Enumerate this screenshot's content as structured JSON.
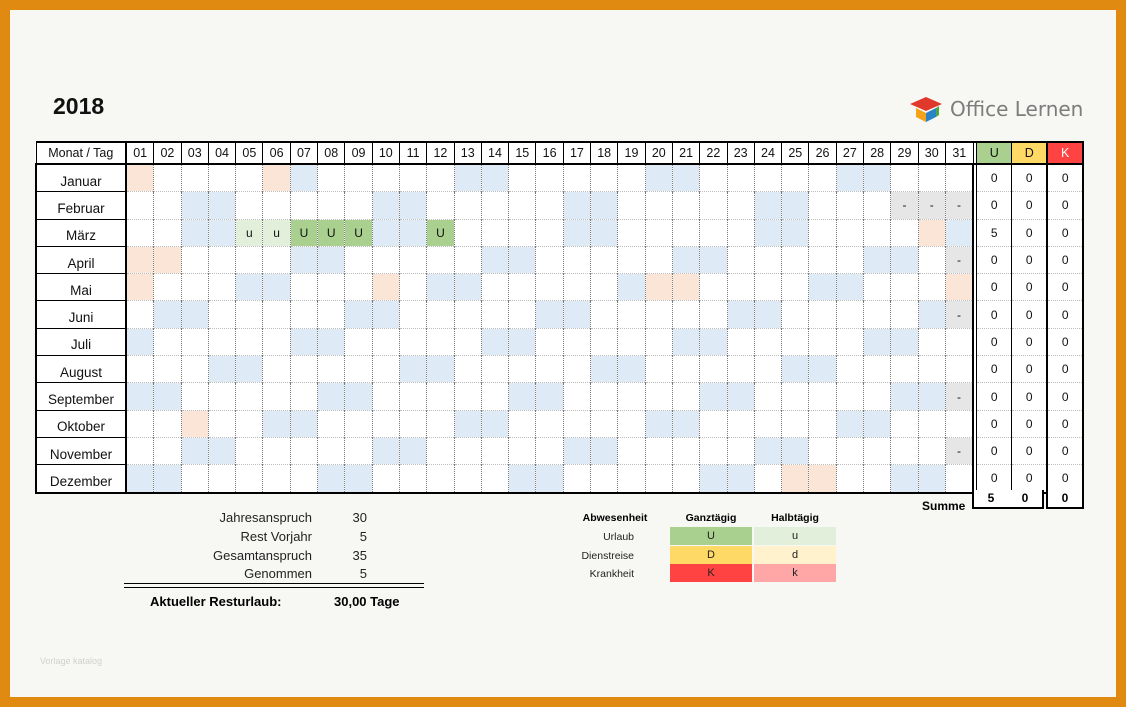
{
  "title": "2018",
  "brand": {
    "name": "Office Lernen",
    "colors": [
      "#e0392b",
      "#f3a21a",
      "#2a83c6",
      "#49a843"
    ]
  },
  "calendar": {
    "corner": "Monat / Tag",
    "days": [
      "01",
      "02",
      "03",
      "04",
      "05",
      "06",
      "07",
      "08",
      "09",
      "10",
      "11",
      "12",
      "13",
      "14",
      "15",
      "16",
      "17",
      "18",
      "19",
      "20",
      "21",
      "22",
      "23",
      "24",
      "25",
      "26",
      "27",
      "28",
      "29",
      "30",
      "31"
    ],
    "count_headers": [
      "U",
      "D",
      "K"
    ],
    "months": [
      {
        "name": "Januar",
        "counts": [
          "0",
          "0",
          "0"
        ]
      },
      {
        "name": "Februar",
        "counts": [
          "0",
          "0",
          "0"
        ]
      },
      {
        "name": "März",
        "counts": [
          "5",
          "0",
          "0"
        ]
      },
      {
        "name": "April",
        "counts": [
          "0",
          "0",
          "0"
        ]
      },
      {
        "name": "Mai",
        "counts": [
          "0",
          "0",
          "0"
        ]
      },
      {
        "name": "Juni",
        "counts": [
          "0",
          "0",
          "0"
        ]
      },
      {
        "name": "Juli",
        "counts": [
          "0",
          "0",
          "0"
        ]
      },
      {
        "name": "August",
        "counts": [
          "0",
          "0",
          "0"
        ]
      },
      {
        "name": "September",
        "counts": [
          "0",
          "0",
          "0"
        ]
      },
      {
        "name": "Oktober",
        "counts": [
          "0",
          "0",
          "0"
        ]
      },
      {
        "name": "November",
        "counts": [
          "0",
          "0",
          "0"
        ]
      },
      {
        "name": "Dezember",
        "counts": [
          "0",
          "0",
          "0"
        ]
      }
    ],
    "entries": [
      {
        "month": 3,
        "day": 5,
        "mark": "u"
      },
      {
        "month": 3,
        "day": 6,
        "mark": "u"
      },
      {
        "month": 3,
        "day": 7,
        "mark": "U"
      },
      {
        "month": 3,
        "day": 8,
        "mark": "U"
      },
      {
        "month": 3,
        "day": 9,
        "mark": "U"
      },
      {
        "month": 3,
        "day": 12,
        "mark": "U"
      },
      {
        "month": 2,
        "day": 29,
        "mark": "-"
      },
      {
        "month": 2,
        "day": 30,
        "mark": "-"
      },
      {
        "month": 2,
        "day": 31,
        "mark": "-"
      },
      {
        "month": 4,
        "day": 31,
        "mark": "-"
      },
      {
        "month": 6,
        "day": 31,
        "mark": "-"
      },
      {
        "month": 9,
        "day": 31,
        "mark": "-"
      },
      {
        "month": 11,
        "day": 31,
        "mark": "-"
      }
    ],
    "holidays": [
      {
        "month": 1,
        "day": 1
      },
      {
        "month": 1,
        "day": 6
      },
      {
        "month": 3,
        "day": 30
      },
      {
        "month": 4,
        "day": 1
      },
      {
        "month": 4,
        "day": 2
      },
      {
        "month": 5,
        "day": 1
      },
      {
        "month": 5,
        "day": 10
      },
      {
        "month": 5,
        "day": 20
      },
      {
        "month": 5,
        "day": 21
      },
      {
        "month": 5,
        "day": 31
      },
      {
        "month": 10,
        "day": 3
      },
      {
        "month": 12,
        "day": 25
      },
      {
        "month": 12,
        "day": 26
      }
    ],
    "weekend_first_saturday": [
      6,
      3,
      3,
      7,
      5,
      2,
      7,
      4,
      1,
      6,
      3,
      1
    ],
    "summe_label": "Summe",
    "summe": [
      "5",
      "0",
      "0"
    ]
  },
  "stats": {
    "rows": [
      {
        "label": "Jahresanspruch",
        "value": "30"
      },
      {
        "label": "Rest Vorjahr",
        "value": "5"
      },
      {
        "label": "Gesamtanspruch",
        "value": "35"
      },
      {
        "label": "Genommen",
        "value": "5"
      }
    ],
    "rest_label": "Aktueller Resturlaub:",
    "rest_value": "30,00  Tage"
  },
  "legend": {
    "headers": [
      "Abwesenheit",
      "Ganztägig",
      "Halbtägig"
    ],
    "rows": [
      {
        "label": "Urlaub",
        "full": "U",
        "half": "u",
        "full_color": "#a9d08e",
        "half_color": "#e2efda"
      },
      {
        "label": "Dienstreise",
        "full": "D",
        "half": "d",
        "full_color": "#ffd966",
        "half_color": "#fff2cc"
      },
      {
        "label": "Krankheit",
        "full": "K",
        "half": "k",
        "full_color": "#ff4343",
        "half_color": "#ffa7a7"
      }
    ]
  },
  "watermark": "Vorlage katalog"
}
